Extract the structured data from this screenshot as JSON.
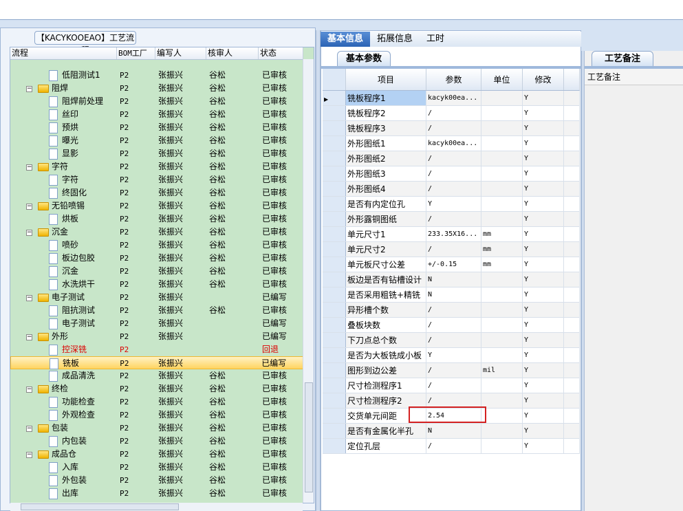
{
  "left": {
    "title": "【KACYKOOEAO】工艺流程",
    "columns": [
      "流程",
      "BOM工厂",
      "编写人",
      "核审人",
      "状态"
    ],
    "rows": [
      {
        "level": 2,
        "type": "leaf",
        "name": "低阻测试1",
        "bom": "P2",
        "writer": "张振兴",
        "reviewer": "谷松",
        "status": "已审核"
      },
      {
        "level": 1,
        "type": "folder",
        "name": "阻焊",
        "bom": "P2",
        "writer": "张振兴",
        "reviewer": "谷松",
        "status": "已审核"
      },
      {
        "level": 2,
        "type": "leaf",
        "name": "阻焊前处理",
        "bom": "P2",
        "writer": "张振兴",
        "reviewer": "谷松",
        "status": "已审核"
      },
      {
        "level": 2,
        "type": "leaf",
        "name": "丝印",
        "bom": "P2",
        "writer": "张振兴",
        "reviewer": "谷松",
        "status": "已审核"
      },
      {
        "level": 2,
        "type": "leaf",
        "name": "预烘",
        "bom": "P2",
        "writer": "张振兴",
        "reviewer": "谷松",
        "status": "已审核"
      },
      {
        "level": 2,
        "type": "leaf",
        "name": "曝光",
        "bom": "P2",
        "writer": "张振兴",
        "reviewer": "谷松",
        "status": "已审核"
      },
      {
        "level": 2,
        "type": "leaf",
        "name": "显影",
        "bom": "P2",
        "writer": "张振兴",
        "reviewer": "谷松",
        "status": "已审核"
      },
      {
        "level": 1,
        "type": "folder",
        "name": "字符",
        "bom": "P2",
        "writer": "张振兴",
        "reviewer": "谷松",
        "status": "已审核"
      },
      {
        "level": 2,
        "type": "leaf",
        "name": "字符",
        "bom": "P2",
        "writer": "张振兴",
        "reviewer": "谷松",
        "status": "已审核"
      },
      {
        "level": 2,
        "type": "leaf",
        "name": "终固化",
        "bom": "P2",
        "writer": "张振兴",
        "reviewer": "谷松",
        "status": "已审核"
      },
      {
        "level": 1,
        "type": "folder",
        "name": "无铅喷锡",
        "bom": "P2",
        "writer": "张振兴",
        "reviewer": "谷松",
        "status": "已审核"
      },
      {
        "level": 2,
        "type": "leaf",
        "name": "烘板",
        "bom": "P2",
        "writer": "张振兴",
        "reviewer": "谷松",
        "status": "已审核"
      },
      {
        "level": 1,
        "type": "folder",
        "name": "沉金",
        "bom": "P2",
        "writer": "张振兴",
        "reviewer": "谷松",
        "status": "已审核"
      },
      {
        "level": 2,
        "type": "leaf",
        "name": "喷砂",
        "bom": "P2",
        "writer": "张振兴",
        "reviewer": "谷松",
        "status": "已审核"
      },
      {
        "level": 2,
        "type": "leaf",
        "name": "板边包胶",
        "bom": "P2",
        "writer": "张振兴",
        "reviewer": "谷松",
        "status": "已审核"
      },
      {
        "level": 2,
        "type": "leaf",
        "name": "沉金",
        "bom": "P2",
        "writer": "张振兴",
        "reviewer": "谷松",
        "status": "已审核"
      },
      {
        "level": 2,
        "type": "leaf",
        "name": "水洗烘干",
        "bom": "P2",
        "writer": "张振兴",
        "reviewer": "谷松",
        "status": "已审核"
      },
      {
        "level": 1,
        "type": "folder",
        "name": "电子测试",
        "bom": "P2",
        "writer": "张振兴",
        "reviewer": "",
        "status": "已编写"
      },
      {
        "level": 2,
        "type": "leaf",
        "name": "阻抗测试",
        "bom": "P2",
        "writer": "张振兴",
        "reviewer": "谷松",
        "status": "已审核"
      },
      {
        "level": 2,
        "type": "leaf",
        "name": "电子测试",
        "bom": "P2",
        "writer": "张振兴",
        "reviewer": "",
        "status": "已编写"
      },
      {
        "level": 1,
        "type": "folder",
        "name": "外形",
        "bom": "P2",
        "writer": "张振兴",
        "reviewer": "",
        "status": "已编写"
      },
      {
        "level": 2,
        "type": "leaf",
        "name": "控深铣",
        "bom": "P2",
        "writer": "",
        "reviewer": "",
        "status": "回退",
        "red": true
      },
      {
        "level": 2,
        "type": "leaf",
        "name": "铣板",
        "bom": "P2",
        "writer": "张振兴",
        "reviewer": "",
        "status": "已编写",
        "selected": true
      },
      {
        "level": 2,
        "type": "leaf",
        "name": "成品清洗",
        "bom": "P2",
        "writer": "张振兴",
        "reviewer": "谷松",
        "status": "已审核"
      },
      {
        "level": 1,
        "type": "folder",
        "name": "终检",
        "bom": "P2",
        "writer": "张振兴",
        "reviewer": "谷松",
        "status": "已审核"
      },
      {
        "level": 2,
        "type": "leaf",
        "name": "功能检查",
        "bom": "P2",
        "writer": "张振兴",
        "reviewer": "谷松",
        "status": "已审核"
      },
      {
        "level": 2,
        "type": "leaf",
        "name": "外观检查",
        "bom": "P2",
        "writer": "张振兴",
        "reviewer": "谷松",
        "status": "已审核"
      },
      {
        "level": 1,
        "type": "folder",
        "name": "包装",
        "bom": "P2",
        "writer": "张振兴",
        "reviewer": "谷松",
        "status": "已审核"
      },
      {
        "level": 2,
        "type": "leaf",
        "name": "内包装",
        "bom": "P2",
        "writer": "张振兴",
        "reviewer": "谷松",
        "status": "已审核"
      },
      {
        "level": 1,
        "type": "folder",
        "name": "成品仓",
        "bom": "P2",
        "writer": "张振兴",
        "reviewer": "谷松",
        "status": "已审核"
      },
      {
        "level": 2,
        "type": "leaf",
        "name": "入库",
        "bom": "P2",
        "writer": "张振兴",
        "reviewer": "谷松",
        "status": "已审核"
      },
      {
        "level": 2,
        "type": "leaf",
        "name": "外包装",
        "bom": "P2",
        "writer": "张振兴",
        "reviewer": "谷松",
        "status": "已审核"
      },
      {
        "level": 2,
        "type": "leaf",
        "name": "出库",
        "bom": "P2",
        "writer": "张振兴",
        "reviewer": "谷松",
        "status": "已审核"
      }
    ]
  },
  "middle": {
    "tabs": [
      "基本信息",
      "拓展信息",
      "工时"
    ],
    "active_tab": 0,
    "subtab": "基本参数",
    "columns": [
      "项目",
      "参数",
      "单位",
      "修改"
    ],
    "rows": [
      [
        "铣板程序1",
        "kacyk00ea...",
        "",
        "Y"
      ],
      [
        "铣板程序2",
        "/",
        "",
        "Y"
      ],
      [
        "铣板程序3",
        "/",
        "",
        "Y"
      ],
      [
        "外形图纸1",
        "kacyk00ea...",
        "",
        "Y"
      ],
      [
        "外形图纸2",
        "/",
        "",
        "Y"
      ],
      [
        "外形图纸3",
        "/",
        "",
        "Y"
      ],
      [
        "外形图纸4",
        "/",
        "",
        "Y"
      ],
      [
        "是否有内定位孔",
        "Y",
        "",
        "Y"
      ],
      [
        "外形露铜图纸",
        "/",
        "",
        "Y"
      ],
      [
        "单元尺寸1",
        "233.35X16...",
        "mm",
        "Y"
      ],
      [
        "单元尺寸2",
        "/",
        "mm",
        "Y"
      ],
      [
        "单元板尺寸公差",
        "+/-0.15",
        "mm",
        "Y"
      ],
      [
        "板边是否有钻槽设计",
        "N",
        "",
        "Y"
      ],
      [
        "是否采用粗铣+精铣",
        "N",
        "",
        "Y"
      ],
      [
        "异形槽个数",
        "/",
        "",
        "Y"
      ],
      [
        "叠板块数",
        "/",
        "",
        "Y"
      ],
      [
        "下刀点总个数",
        "/",
        "",
        "Y"
      ],
      [
        "是否为大板铣成小板",
        "Y",
        "",
        "Y"
      ],
      [
        "图形到边公差",
        "/",
        "mil",
        "Y"
      ],
      [
        "尺寸检测程序1",
        "/",
        "",
        "Y"
      ],
      [
        "尺寸检测程序2",
        "/",
        "",
        "Y"
      ],
      [
        "交货单元间距",
        "2.54",
        "",
        "Y"
      ],
      [
        "是否有金属化半孔",
        "N",
        "",
        "Y"
      ],
      [
        "定位孔层",
        "/",
        "",
        "Y"
      ]
    ],
    "highlight_row": 21
  },
  "right": {
    "tab": "工艺备注",
    "label": "工艺备注"
  }
}
